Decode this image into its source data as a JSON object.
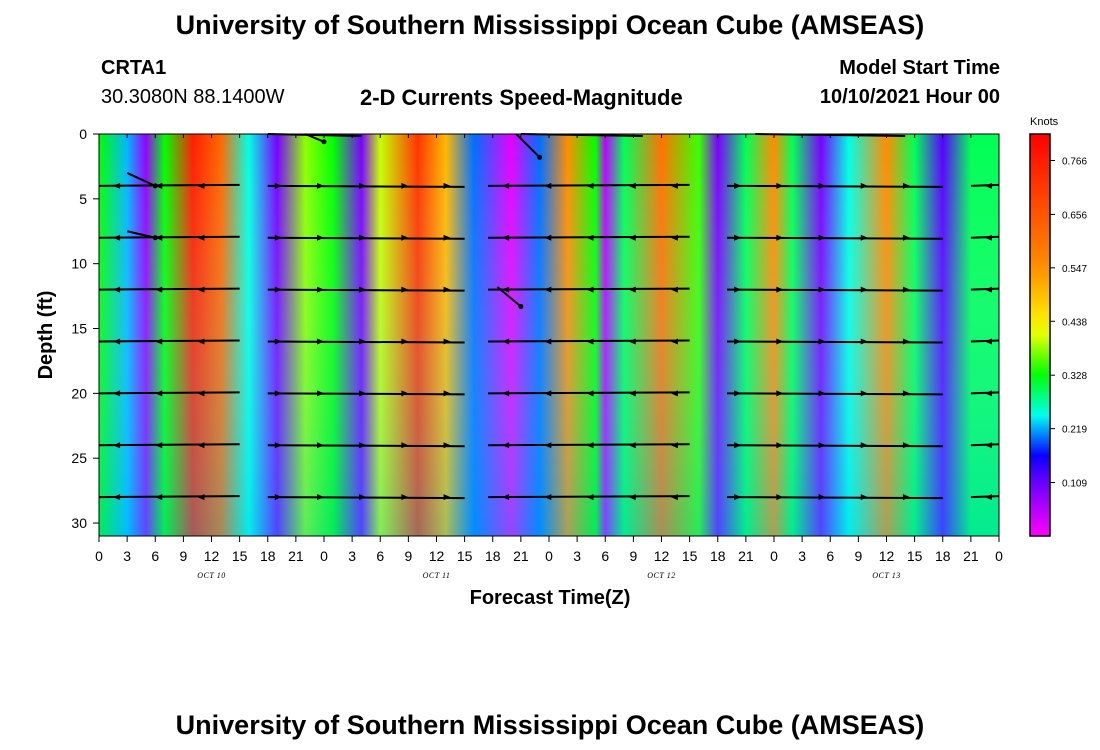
{
  "header": {
    "title": "University of Southern Mississippi Ocean Cube (AMSEAS)",
    "station_id": "CRTA1",
    "station_coords": "30.3080N  88.1400W",
    "plot_title": "2-D Currents Speed-Magnitude",
    "model_start_label": "Model Start Time",
    "model_start_value": "10/10/2021 Hour 00"
  },
  "footer": {
    "title": "University of Southern Mississippi Ocean Cube (AMSEAS)"
  },
  "chart_data": {
    "type": "heatmap",
    "title": "2-D Currents Speed-Magnitude",
    "xlabel": "Forecast Time(Z)",
    "ylabel": "Depth (ft)",
    "x_ticks": [
      "0",
      "3",
      "6",
      "9",
      "12",
      "15",
      "18",
      "21",
      "0",
      "3",
      "6",
      "9",
      "12",
      "15",
      "18",
      "21",
      "0",
      "3",
      "6",
      "9",
      "12",
      "15",
      "18",
      "21",
      "0",
      "3",
      "6",
      "9",
      "12",
      "15",
      "18",
      "21",
      "0"
    ],
    "day_labels": [
      "OCT 10",
      "OCT 11",
      "OCT 12",
      "OCT 13"
    ],
    "y_ticks": [
      0,
      5,
      10,
      15,
      20,
      25,
      30
    ],
    "ylim": [
      0,
      31
    ],
    "xlim_hours": [
      0,
      96
    ],
    "colorbar": {
      "label": "Knots",
      "ticks": [
        "0.766",
        "0.656",
        "0.547",
        "0.438",
        "0.328",
        "0.219",
        "0.109"
      ],
      "tick_values": [
        0.766,
        0.656,
        0.547,
        0.438,
        0.328,
        0.219,
        0.109
      ],
      "range": [
        0.0,
        0.82
      ]
    },
    "surface_speed_profile_knots": [
      {
        "hour": 0,
        "speed": 0.33
      },
      {
        "hour": 3,
        "speed": 0.22
      },
      {
        "hour": 5,
        "speed": 0.08
      },
      {
        "hour": 7,
        "speed": 0.33
      },
      {
        "hour": 10,
        "speed": 0.76
      },
      {
        "hour": 13,
        "speed": 0.62
      },
      {
        "hour": 16,
        "speed": 0.25
      },
      {
        "hour": 19,
        "speed": 0.1
      },
      {
        "hour": 22,
        "speed": 0.38
      },
      {
        "hour": 25,
        "speed": 0.33
      },
      {
        "hour": 28,
        "speed": 0.1
      },
      {
        "hour": 30,
        "speed": 0.4
      },
      {
        "hour": 34,
        "speed": 0.72
      },
      {
        "hour": 37,
        "speed": 0.5
      },
      {
        "hour": 40,
        "speed": 0.2
      },
      {
        "hour": 44,
        "speed": 0.02
      },
      {
        "hour": 47,
        "speed": 0.2
      },
      {
        "hour": 50,
        "speed": 0.55
      },
      {
        "hour": 53,
        "speed": 0.33
      },
      {
        "hour": 54,
        "speed": 0.05
      },
      {
        "hour": 56,
        "speed": 0.3
      },
      {
        "hour": 60,
        "speed": 0.6
      },
      {
        "hour": 64,
        "speed": 0.35
      },
      {
        "hour": 66,
        "speed": 0.1
      },
      {
        "hour": 69,
        "speed": 0.3
      },
      {
        "hour": 72,
        "speed": 0.55
      },
      {
        "hour": 74,
        "speed": 0.3
      },
      {
        "hour": 77,
        "speed": 0.1
      },
      {
        "hour": 80,
        "speed": 0.25
      },
      {
        "hour": 84,
        "speed": 0.55
      },
      {
        "hour": 87,
        "speed": 0.3
      },
      {
        "hour": 90,
        "speed": 0.12
      },
      {
        "hour": 93,
        "speed": 0.3
      },
      {
        "hour": 96,
        "speed": 0.3
      }
    ],
    "arrow_depths_ft": [
      4,
      8,
      12,
      16,
      20,
      24,
      28
    ]
  }
}
